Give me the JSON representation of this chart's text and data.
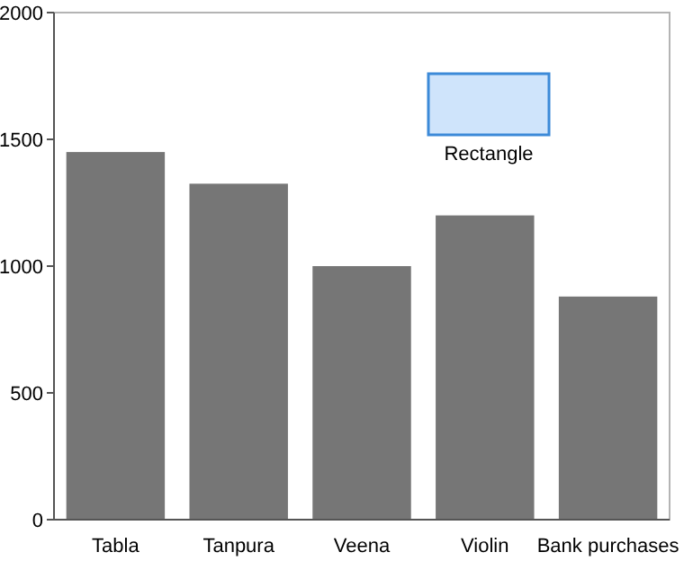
{
  "chart_data": {
    "type": "bar",
    "categories": [
      "Tabla",
      "Tanpura",
      "Veena",
      "Violin",
      "Bank purchases"
    ],
    "values": [
      1450,
      1325,
      1000,
      1200,
      880
    ],
    "color": "#767676",
    "ylim": [
      0,
      2000
    ],
    "yticks": [
      0,
      500,
      1000,
      1500,
      2000
    ],
    "grid": false,
    "annotations": [
      "Rectangle"
    ]
  }
}
